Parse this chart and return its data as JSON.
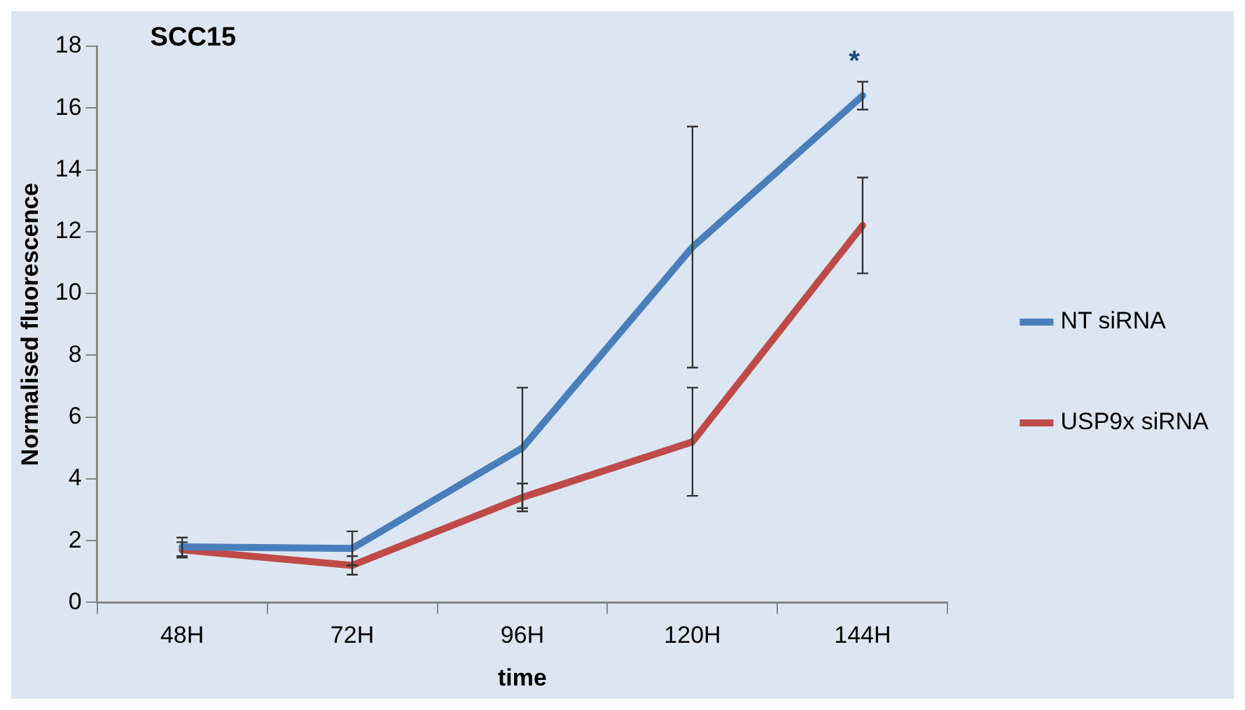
{
  "chart_data": {
    "type": "line",
    "title": "SCC15",
    "xlabel": "time",
    "ylabel": "Normalised fluorescence",
    "categories": [
      "48H",
      "72H",
      "96H",
      "120H",
      "144H"
    ],
    "series": [
      {
        "name": "NT siRNA",
        "color": "#4a7ebb",
        "values": [
          1.8,
          1.75,
          5.0,
          11.5,
          16.4
        ],
        "errors": [
          0.3,
          0.55,
          1.95,
          3.9,
          0.45
        ]
      },
      {
        "name": "USP9x siRNA",
        "color": "#be4b48",
        "values": [
          1.7,
          1.2,
          3.4,
          5.2,
          12.2
        ],
        "errors": [
          0.25,
          0.3,
          0.45,
          1.75,
          1.55
        ]
      }
    ],
    "ylim": [
      0,
      18
    ],
    "yticks": [
      0,
      2,
      4,
      6,
      8,
      10,
      12,
      14,
      16,
      18
    ],
    "annotations": [
      "*"
    ],
    "grid": false,
    "legend": "right",
    "marker": "none",
    "line_style": "solid"
  }
}
